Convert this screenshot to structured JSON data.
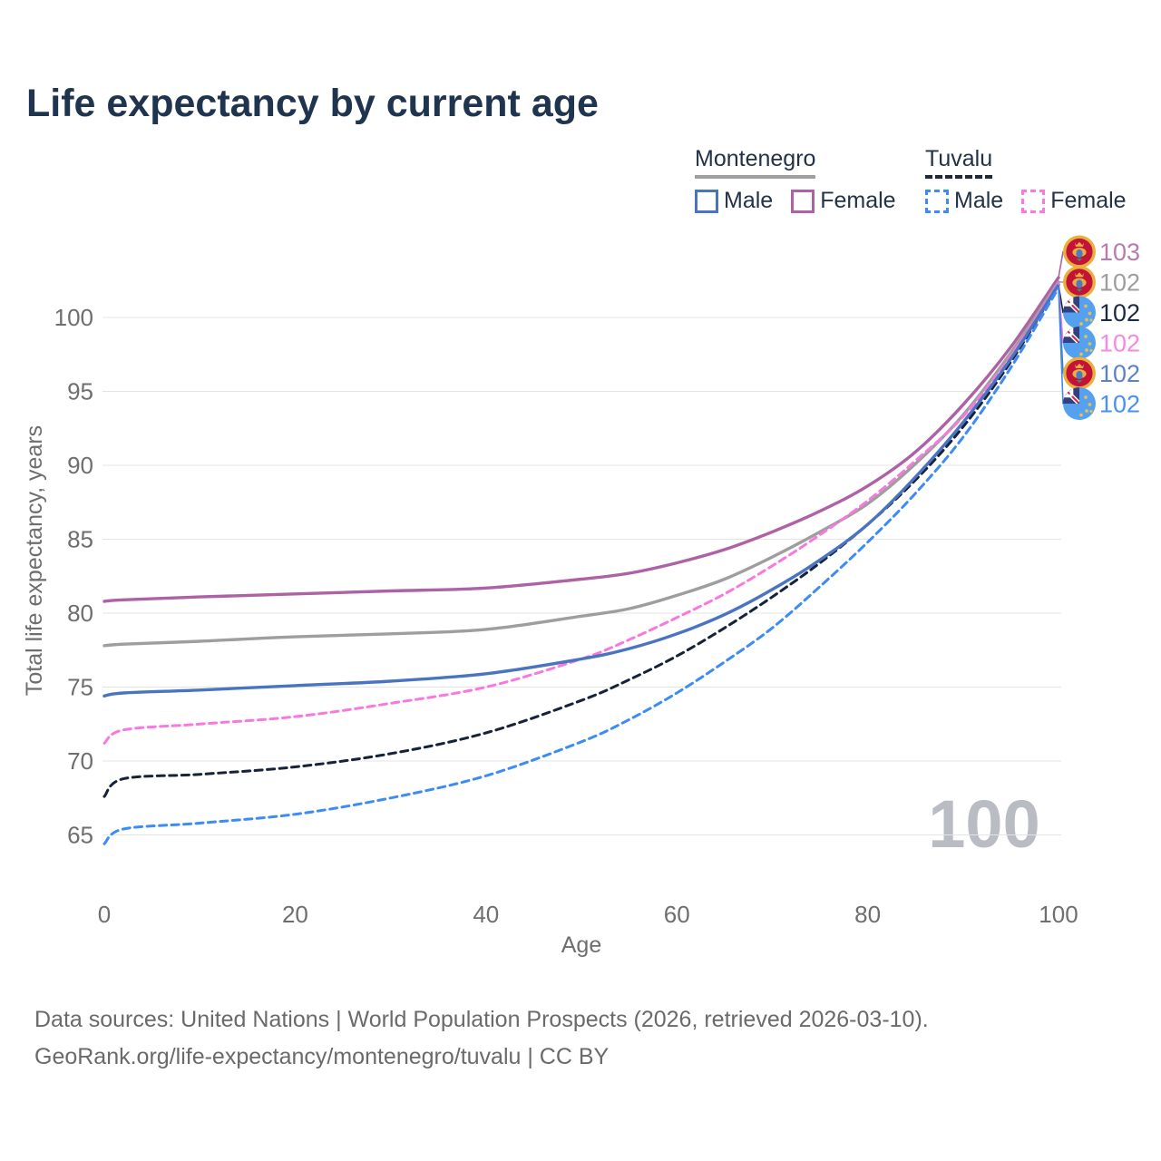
{
  "title": "Life expectancy by current age",
  "watermark": "100",
  "legend": {
    "groups": [
      {
        "label": "Montenegro",
        "style": "solid",
        "underline_color": "#9e9e9e",
        "items": [
          {
            "label": "Male",
            "color": "#4a74c2"
          },
          {
            "label": "Female",
            "color": "#ae62a5"
          }
        ]
      },
      {
        "label": "Tuvalu",
        "style": "dashed",
        "underline_color": "#1b2a3c",
        "items": [
          {
            "label": "Male",
            "color": "#3d8bf5"
          },
          {
            "label": "Female",
            "color": "#f878e0"
          }
        ]
      }
    ]
  },
  "footer": {
    "line1": "Data sources: United Nations | World Population Prospects (2026, retrieved 2026-03-10).",
    "line2": "GeoRank.org/life-expectancy/montenegro/tuvalu | CC BY"
  },
  "chart_data": {
    "type": "line",
    "title": "Life expectancy by current age",
    "xlabel": "Age",
    "ylabel": "Total life expectancy, years",
    "xlim": [
      0,
      100
    ],
    "ylim": [
      63,
      104
    ],
    "x_ticks": [
      0,
      20,
      40,
      60,
      80,
      100
    ],
    "y_ticks": [
      65,
      70,
      75,
      80,
      85,
      90,
      95,
      100
    ],
    "grid": "horizontal",
    "legend_position": "top-right",
    "x": [
      0,
      2,
      10,
      20,
      30,
      40,
      50,
      55,
      60,
      65,
      70,
      75,
      80,
      85,
      90,
      95,
      100
    ],
    "series": [
      {
        "name": "Montenegro Female",
        "country": "Montenegro",
        "sex": "Female",
        "color": "#ae62a5",
        "dashed": false,
        "flag": "mne",
        "end_label": "103",
        "end_label_color": "#b87bae",
        "values": [
          80.8,
          80.9,
          81.1,
          81.3,
          81.5,
          81.7,
          82.3,
          82.7,
          83.4,
          84.3,
          85.5,
          86.9,
          88.6,
          90.9,
          94.1,
          98.0,
          102.7
        ]
      },
      {
        "name": "Montenegro Both sexes",
        "country": "Montenegro",
        "sex": "Both sexes",
        "color": "#9e9e9e",
        "dashed": false,
        "flag": "mne",
        "end_label": "102",
        "end_label_color": "#9e9e9e",
        "values": [
          77.8,
          77.9,
          78.1,
          78.4,
          78.6,
          78.9,
          79.8,
          80.3,
          81.2,
          82.3,
          83.8,
          85.5,
          87.4,
          90.1,
          93.4,
          97.6,
          102.4
        ]
      },
      {
        "name": "Tuvalu Both sexes",
        "country": "Tuvalu",
        "sex": "Both sexes",
        "color": "#152238",
        "dashed": true,
        "flag": "tuv",
        "end_label": "102",
        "end_label_color": "#1b2a41",
        "values": [
          67.6,
          68.8,
          69.1,
          69.6,
          70.5,
          71.9,
          74.1,
          75.5,
          77.1,
          79.0,
          81.1,
          83.4,
          86.0,
          89.0,
          92.6,
          97.0,
          102.2
        ]
      },
      {
        "name": "Tuvalu Female",
        "country": "Tuvalu",
        "sex": "Female",
        "color": "#f878e0",
        "dashed": true,
        "flag": "tuv",
        "end_label": "102",
        "end_label_color": "#f987e3",
        "values": [
          71.2,
          72.1,
          72.5,
          73.0,
          73.9,
          75.0,
          76.9,
          78.2,
          79.7,
          81.3,
          83.2,
          85.3,
          87.6,
          90.3,
          93.3,
          97.4,
          102.3
        ]
      },
      {
        "name": "Montenegro Male",
        "country": "Montenegro",
        "sex": "Male",
        "color": "#4a74c2",
        "dashed": false,
        "flag": "mne",
        "end_label": "102",
        "end_label_color": "#5b82c9",
        "values": [
          74.4,
          74.6,
          74.8,
          75.1,
          75.4,
          75.9,
          76.9,
          77.6,
          78.6,
          79.9,
          81.6,
          83.6,
          86.0,
          89.2,
          92.9,
          97.2,
          102.2
        ]
      },
      {
        "name": "Tuvalu Male",
        "country": "Tuvalu",
        "sex": "Male",
        "color": "#3d8bf5",
        "dashed": true,
        "flag": "tuv",
        "end_label": "102",
        "end_label_color": "#4a90f2",
        "values": [
          64.4,
          65.4,
          65.8,
          66.4,
          67.5,
          69.0,
          71.3,
          72.8,
          74.6,
          76.7,
          79.0,
          81.8,
          84.8,
          88.1,
          91.9,
          96.6,
          102.0
        ]
      }
    ]
  }
}
